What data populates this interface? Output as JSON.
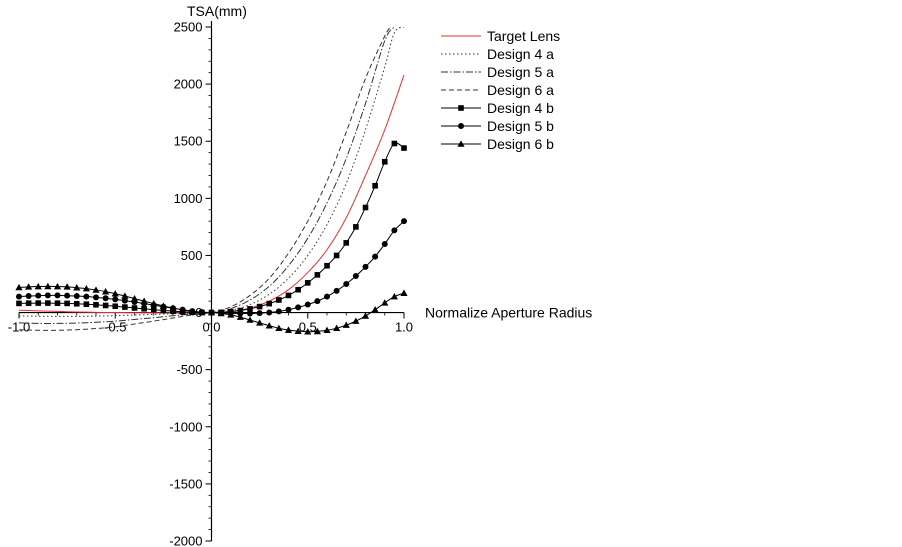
{
  "chart_data": {
    "type": "line",
    "ylabel": "TSA(mm)",
    "xlabel": "Normalize Aperture Radius",
    "xlim": [
      -1.0,
      1.0
    ],
    "ylim": [
      -2000,
      2500
    ],
    "x_ticks": [
      -1.0,
      -0.5,
      0.0,
      0.5,
      1.0
    ],
    "x_tick_labels": [
      "-1.0",
      "-0.5",
      "0.0",
      "0.5",
      "1.0"
    ],
    "y_ticks": [
      -2000,
      -1500,
      -1000,
      -500,
      0,
      500,
      1000,
      1500,
      2000,
      2500
    ],
    "y_tick_labels": [
      "-2000",
      "-1500",
      "-1000",
      "-500",
      "0",
      "500",
      "1000",
      "1500",
      "2000",
      "2500"
    ],
    "legend_position": "top-right",
    "grid": false,
    "series": [
      {
        "name": "Target Lens",
        "color": "#e8302a",
        "dash": "solid",
        "marker": "none",
        "x": [
          -1.0,
          -0.9,
          -0.8,
          -0.7,
          -0.6,
          -0.5,
          -0.4,
          -0.3,
          -0.2,
          -0.1,
          0.0,
          0.1,
          0.2,
          0.3,
          0.4,
          0.5,
          0.6,
          0.7,
          0.8,
          0.9,
          1.0
        ],
        "y": [
          20,
          15,
          10,
          5,
          2,
          0,
          -2,
          -3,
          -3,
          -2,
          0,
          10,
          40,
          100,
          200,
          350,
          550,
          830,
          1200,
          1600,
          2080
        ]
      },
      {
        "name": "Design 4 a",
        "color": "#333333",
        "dash": "dotted",
        "marker": "none",
        "x": [
          -1.0,
          -0.9,
          -0.8,
          -0.7,
          -0.6,
          -0.5,
          -0.4,
          -0.3,
          -0.2,
          -0.1,
          0.0,
          0.1,
          0.2,
          0.3,
          0.4,
          0.5,
          0.6,
          0.7,
          0.8,
          0.9,
          0.95,
          1.0
        ],
        "y": [
          -30,
          -32,
          -33,
          -33,
          -31,
          -27,
          -22,
          -16,
          -10,
          -5,
          0,
          20,
          70,
          160,
          300,
          500,
          770,
          1130,
          1600,
          2150,
          2450,
          2500
        ]
      },
      {
        "name": "Design 5 a",
        "color": "#333333",
        "dash": "dashdot",
        "marker": "none",
        "x": [
          -1.0,
          -0.9,
          -0.8,
          -0.7,
          -0.6,
          -0.5,
          -0.4,
          -0.3,
          -0.2,
          -0.1,
          0.0,
          0.1,
          0.2,
          0.3,
          0.4,
          0.5,
          0.6,
          0.7,
          0.8,
          0.9,
          0.95
        ],
        "y": [
          -90,
          -95,
          -95,
          -92,
          -85,
          -75,
          -60,
          -45,
          -28,
          -12,
          0,
          35,
          110,
          230,
          410,
          650,
          960,
          1350,
          1830,
          2380,
          2500
        ]
      },
      {
        "name": "Design 6 a",
        "color": "#333333",
        "dash": "dashed",
        "marker": "none",
        "x": [
          -1.0,
          -0.9,
          -0.8,
          -0.7,
          -0.6,
          -0.5,
          -0.4,
          -0.3,
          -0.2,
          -0.1,
          0.0,
          0.1,
          0.2,
          0.3,
          0.4,
          0.5,
          0.6,
          0.7,
          0.8,
          0.9,
          0.93
        ],
        "y": [
          -150,
          -155,
          -155,
          -150,
          -140,
          -125,
          -100,
          -75,
          -48,
          -20,
          0,
          50,
          150,
          300,
          520,
          800,
          1150,
          1580,
          2050,
          2420,
          2500
        ]
      },
      {
        "name": "Design 4 b",
        "color": "#000000",
        "dash": "solid",
        "marker": "square",
        "x": [
          -1.0,
          -0.95,
          -0.9,
          -0.85,
          -0.8,
          -0.75,
          -0.7,
          -0.65,
          -0.6,
          -0.55,
          -0.5,
          -0.45,
          -0.4,
          -0.35,
          -0.3,
          -0.25,
          -0.2,
          -0.15,
          -0.1,
          -0.05,
          0.0,
          0.05,
          0.1,
          0.15,
          0.2,
          0.25,
          0.3,
          0.35,
          0.4,
          0.45,
          0.5,
          0.55,
          0.6,
          0.65,
          0.7,
          0.75,
          0.8,
          0.85,
          0.9,
          0.95,
          1.0
        ],
        "y": [
          80,
          82,
          83,
          83,
          82,
          80,
          77,
          73,
          68,
          62,
          55,
          48,
          40,
          33,
          25,
          18,
          12,
          6,
          2,
          0,
          0,
          2,
          8,
          18,
          32,
          52,
          78,
          110,
          150,
          200,
          260,
          330,
          410,
          500,
          610,
          750,
          920,
          1110,
          1320,
          1480,
          1440
        ]
      },
      {
        "name": "Design 5 b",
        "color": "#000000",
        "dash": "solid",
        "marker": "circle",
        "x": [
          -1.0,
          -0.95,
          -0.9,
          -0.85,
          -0.8,
          -0.75,
          -0.7,
          -0.65,
          -0.6,
          -0.55,
          -0.5,
          -0.45,
          -0.4,
          -0.35,
          -0.3,
          -0.25,
          -0.2,
          -0.15,
          -0.1,
          -0.05,
          0.0,
          0.05,
          0.1,
          0.15,
          0.2,
          0.25,
          0.3,
          0.35,
          0.4,
          0.45,
          0.5,
          0.55,
          0.6,
          0.65,
          0.7,
          0.75,
          0.8,
          0.85,
          0.9,
          0.95,
          1.0
        ],
        "y": [
          140,
          145,
          148,
          150,
          150,
          148,
          145,
          140,
          133,
          125,
          115,
          104,
          92,
          79,
          65,
          51,
          38,
          25,
          13,
          4,
          0,
          -3,
          -6,
          -8,
          -8,
          -5,
          0,
          10,
          25,
          45,
          70,
          100,
          140,
          190,
          250,
          320,
          400,
          490,
          600,
          720,
          800
        ]
      },
      {
        "name": "Design 6 b",
        "color": "#000000",
        "dash": "solid",
        "marker": "triangle",
        "x": [
          -1.0,
          -0.95,
          -0.9,
          -0.85,
          -0.8,
          -0.75,
          -0.7,
          -0.65,
          -0.6,
          -0.55,
          -0.5,
          -0.45,
          -0.4,
          -0.35,
          -0.3,
          -0.25,
          -0.2,
          -0.15,
          -0.1,
          -0.05,
          0.0,
          0.05,
          0.1,
          0.15,
          0.2,
          0.25,
          0.3,
          0.35,
          0.4,
          0.45,
          0.5,
          0.55,
          0.6,
          0.65,
          0.7,
          0.75,
          0.8,
          0.85,
          0.9,
          0.95,
          1.0
        ],
        "y": [
          220,
          225,
          228,
          229,
          228,
          225,
          218,
          210,
          198,
          183,
          165,
          145,
          122,
          100,
          78,
          58,
          40,
          24,
          10,
          2,
          0,
          -8,
          -20,
          -40,
          -65,
          -90,
          -115,
          -137,
          -153,
          -163,
          -168,
          -165,
          -155,
          -137,
          -110,
          -75,
          -30,
          25,
          85,
          140,
          170
        ]
      }
    ]
  }
}
